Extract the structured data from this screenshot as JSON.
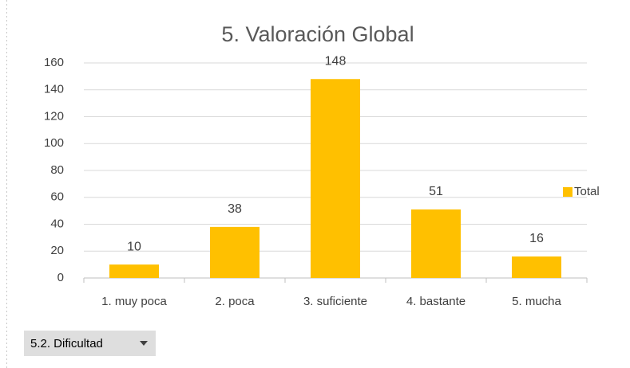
{
  "chart_data": {
    "type": "bar",
    "title": "5. Valoración Global",
    "categories": [
      "1. muy poca",
      "2. poca",
      "3. suficiente",
      "4. bastante",
      "5. mucha"
    ],
    "series": [
      {
        "name": "Total",
        "color": "#ffc000",
        "values": [
          10,
          38,
          148,
          51,
          16
        ]
      }
    ],
    "ylim": [
      0,
      160
    ],
    "yticks": [
      0,
      20,
      40,
      60,
      80,
      100,
      120,
      140,
      160
    ],
    "grid": true,
    "legend": "right"
  },
  "filter_button": "5.2. Dificultad"
}
